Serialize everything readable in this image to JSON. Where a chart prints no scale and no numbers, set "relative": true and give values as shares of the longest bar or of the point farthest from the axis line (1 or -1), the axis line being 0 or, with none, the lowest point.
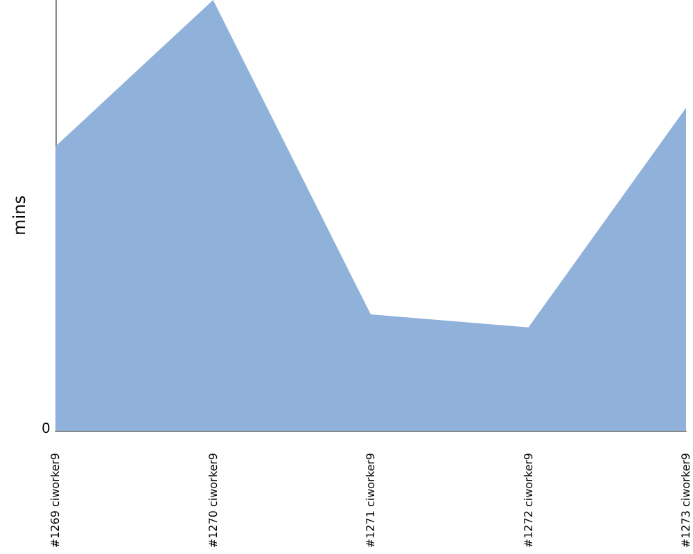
{
  "chart_data": {
    "type": "area",
    "relative": true,
    "ylabel": "mins",
    "annotations": [
      "0"
    ],
    "categories": [
      "#1269 ciworker9",
      "#1270 ciworker9",
      "#1271 ciworker9",
      "#1272 ciworker9",
      "#1273 ciworker9"
    ],
    "series": [
      {
        "color": "#8fb1da",
        "values": [
          0.66,
          1,
          0.27,
          0.24,
          0.75
        ]
      }
    ],
    "grid": false
  }
}
